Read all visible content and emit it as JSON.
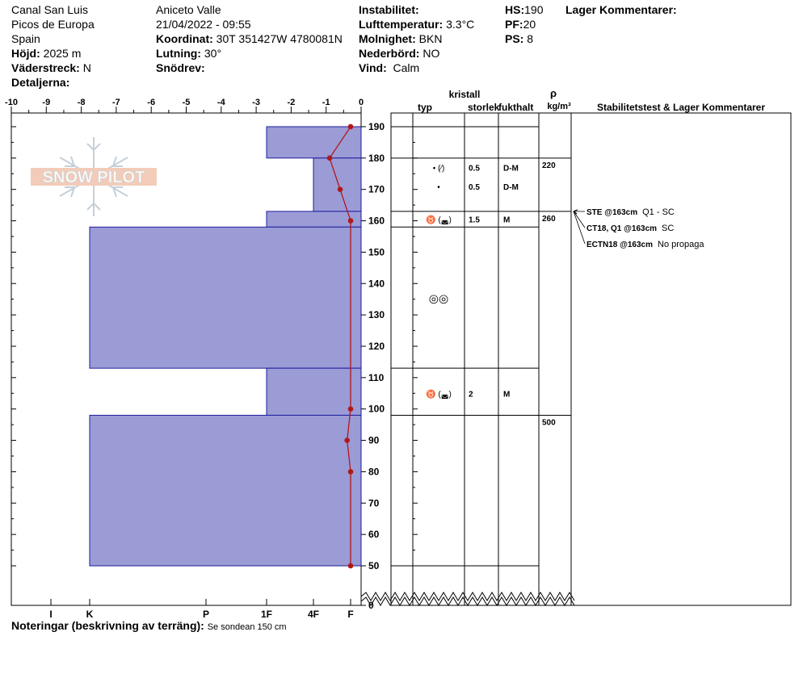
{
  "header": {
    "location": "Canal San Luis",
    "range": "Picos de Europa",
    "country": "Spain",
    "elevation_label": "Höjd:",
    "elevation_value": "2025 m",
    "aspect_label": "Väderstreck:",
    "aspect_value": "N",
    "details_label": "Detaljerna:",
    "observer": "Aniceto Valle",
    "datetime": "21/04/2022 - 09:55",
    "coord_label": "Koordinat:",
    "coord_value": "30T 351427W 4780081N",
    "slope_label": "Lutning:",
    "slope_value": "30°",
    "drift_label": "Snödrev:",
    "drift_value": "",
    "instability_label": "Instabilitet:",
    "instability_value": "",
    "airtemp_label": "Lufttemperatur:",
    "airtemp_value": "3.3°C",
    "sky_label": "Molnighet:",
    "sky_value": "BKN",
    "precip_label": "Nederbörd:",
    "precip_value": "NO",
    "wind_label": "Vind:",
    "wind_value": "Calm",
    "hs_label": "HS:",
    "hs_value": "190",
    "pf_label": "PF:",
    "pf_value": "20",
    "ps_label": "PS:",
    "ps_value": "8",
    "layer_comments_label": "Lager Kommentarer:"
  },
  "logo_text": "SNOW PILOT",
  "columns": {
    "crystal": "kristall",
    "type": "typ",
    "size": "storlek",
    "moisture": "fukthalt",
    "rho": "ρ",
    "density_unit": "kg/m³",
    "stability": "Stabilitetstest & Lager Kommentarer"
  },
  "footer": {
    "notes_label": "Noteringar (beskrivning av terräng):",
    "notes_value": "Se sondean 150 cm"
  },
  "colors": {
    "hardness_fill": "#9b9bd6",
    "hardness_stroke": "#1e1e9e",
    "temp_line": "#b01818"
  },
  "chart_data": {
    "type": "snow-profile",
    "x_temperature": {
      "ticks": [
        -10,
        -9,
        -8,
        -7,
        -6,
        -5,
        -4,
        -3,
        -2,
        -1,
        0
      ],
      "labels": [
        "-10",
        "-9",
        "-8",
        "-7",
        "-6",
        "-5",
        "-4",
        "-3",
        "-2",
        "-1",
        "0"
      ]
    },
    "x_hardness": {
      "labels": [
        "I",
        "K",
        "P",
        "1F",
        "4F",
        "F"
      ]
    },
    "y_height": {
      "range": [
        0,
        190
      ],
      "ticks": [
        0,
        50,
        60,
        70,
        80,
        90,
        100,
        110,
        120,
        130,
        140,
        150,
        160,
        170,
        180,
        190
      ],
      "break": [
        0,
        50
      ]
    },
    "hardness_layers": [
      {
        "bottom": 180,
        "top": 190,
        "hardness": "1F"
      },
      {
        "bottom": 163,
        "top": 180,
        "hardness": "4F"
      },
      {
        "bottom": 158,
        "top": 163,
        "hardness": "1F"
      },
      {
        "bottom": 113,
        "top": 158,
        "hardness": "K"
      },
      {
        "bottom": 98,
        "top": 113,
        "hardness": "1F"
      },
      {
        "bottom": 50,
        "top": 98,
        "hardness": "K"
      }
    ],
    "temperature_profile": [
      {
        "height": 190,
        "temp": -0.3
      },
      {
        "height": 180,
        "temp": -0.9
      },
      {
        "height": 170,
        "temp": -0.6
      },
      {
        "height": 160,
        "temp": -0.3
      },
      {
        "height": 100,
        "temp": -0.3
      },
      {
        "height": 90,
        "temp": -0.4
      },
      {
        "height": 80,
        "temp": -0.3
      },
      {
        "height": 50,
        "temp": -0.3
      }
    ],
    "layer_boundaries": [
      190,
      180,
      163,
      158,
      113,
      98,
      50
    ],
    "layers": [
      {
        "top": 190,
        "bottom": 180,
        "mid": 177,
        "type": "• (⁄)",
        "size": "0.5",
        "moisture": "D-M"
      },
      {
        "top": 180,
        "bottom": 163,
        "mid": 171,
        "type": "•",
        "size": "0.5",
        "moisture": "D-M"
      },
      {
        "top": 163,
        "bottom": 158,
        "mid": 160.5,
        "type": "♉ (◛)",
        "size": "1.5",
        "moisture": "M"
      },
      {
        "top": 158,
        "bottom": 113,
        "mid": 135,
        "type": "◎◎",
        "size": "",
        "moisture": ""
      },
      {
        "top": 113,
        "bottom": 98,
        "mid": 105,
        "type": "♉ (◛)",
        "size": "2",
        "moisture": "M"
      },
      {
        "top": 98,
        "bottom": 50,
        "mid": 74,
        "type": "",
        "size": "",
        "moisture": ""
      }
    ],
    "densities": [
      {
        "height": 180,
        "value": "220"
      },
      {
        "height": 163,
        "value": "260"
      },
      {
        "height": 98,
        "value": "500"
      }
    ],
    "stability_tests": [
      {
        "test": "STE @163cm",
        "result": "Q1 - SC"
      },
      {
        "test": "CT18, Q1 @163cm",
        "result": "SC"
      },
      {
        "test": "ECTN18 @163cm",
        "result": "No propaga"
      }
    ]
  }
}
